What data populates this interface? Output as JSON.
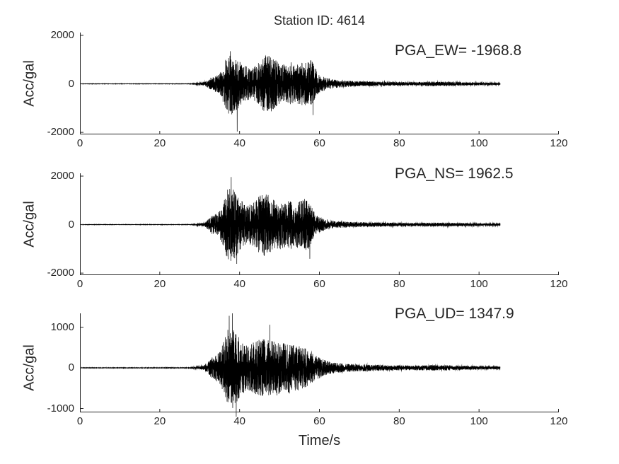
{
  "title": "Station ID: 4614",
  "xlabel": "Time/s",
  "style": {
    "background": "#ffffff",
    "axis_color": "#262626",
    "text_color": "#262626",
    "trace_color": "#000000"
  },
  "chart_data": [
    {
      "type": "line",
      "channel": "EW",
      "annotation": "PGA_EW= -1968.8",
      "pga": -1968.8,
      "ylabel": "Acc/gal",
      "xlim": [
        0,
        120
      ],
      "ylim": [
        -2085,
        2115
      ],
      "xticks": [
        0,
        20,
        40,
        60,
        80,
        100,
        120
      ],
      "yticks": [
        -2000,
        0,
        2000
      ],
      "legend": "none",
      "grid": false,
      "signal": {
        "t_end": 105.3,
        "dt": 0.02,
        "seed": 11,
        "envelope": [
          [
            0,
            6
          ],
          [
            27,
            7
          ],
          [
            29,
            15
          ],
          [
            31,
            60
          ],
          [
            32,
            150
          ],
          [
            33,
            280
          ],
          [
            34,
            330
          ],
          [
            35,
            420
          ],
          [
            36,
            800
          ],
          [
            37,
            1200
          ],
          [
            38,
            1300
          ],
          [
            39,
            1150
          ],
          [
            40,
            950
          ],
          [
            41,
            800
          ],
          [
            42,
            680
          ],
          [
            43,
            650
          ],
          [
            44,
            750
          ],
          [
            45,
            900
          ],
          [
            46,
            1150
          ],
          [
            47,
            1200
          ],
          [
            48,
            1150
          ],
          [
            49,
            1000
          ],
          [
            50,
            850
          ],
          [
            51,
            800
          ],
          [
            52,
            850
          ],
          [
            53,
            900
          ],
          [
            54,
            800
          ],
          [
            55,
            850
          ],
          [
            56,
            900
          ],
          [
            57,
            950
          ],
          [
            58,
            1000
          ],
          [
            58.8,
            700
          ],
          [
            60,
            380
          ],
          [
            61,
            300
          ],
          [
            62,
            250
          ],
          [
            63,
            200
          ],
          [
            65,
            150
          ],
          [
            68,
            125
          ],
          [
            71,
            105
          ],
          [
            75,
            95
          ],
          [
            79,
            80
          ],
          [
            83,
            70
          ],
          [
            86,
            85
          ],
          [
            88,
            105
          ],
          [
            90,
            85
          ],
          [
            92,
            95
          ],
          [
            94,
            80
          ],
          [
            96,
            65
          ],
          [
            99,
            55
          ],
          [
            102,
            50
          ],
          [
            105.3,
            40
          ]
        ],
        "spikes": [
          {
            "t": 39.4,
            "v": -1968.8
          },
          {
            "t": 37.7,
            "v": 1345
          },
          {
            "t": 58.4,
            "v": -1290
          }
        ]
      }
    },
    {
      "type": "line",
      "channel": "NS",
      "annotation": "PGA_NS= 1962.5",
      "pga": 1962.5,
      "ylabel": "Acc/gal",
      "xlim": [
        0,
        120
      ],
      "ylim": [
        -2085,
        2115
      ],
      "xticks": [
        0,
        20,
        40,
        60,
        80,
        100,
        120
      ],
      "yticks": [
        -2000,
        0,
        2000
      ],
      "legend": "none",
      "grid": false,
      "signal": {
        "t_end": 105.3,
        "dt": 0.02,
        "seed": 22,
        "envelope": [
          [
            0,
            6
          ],
          [
            27,
            7
          ],
          [
            29,
            15
          ],
          [
            31,
            80
          ],
          [
            32,
            200
          ],
          [
            33,
            380
          ],
          [
            34,
            430
          ],
          [
            35,
            550
          ],
          [
            36,
            900
          ],
          [
            37,
            1500
          ],
          [
            38,
            1550
          ],
          [
            39,
            1350
          ],
          [
            40,
            1100
          ],
          [
            41,
            900
          ],
          [
            42,
            800
          ],
          [
            43,
            850
          ],
          [
            44,
            1000
          ],
          [
            45,
            1200
          ],
          [
            46,
            1300
          ],
          [
            47,
            1250
          ],
          [
            48,
            1100
          ],
          [
            49,
            1000
          ],
          [
            50,
            1050
          ],
          [
            51,
            1000
          ],
          [
            52,
            950
          ],
          [
            53,
            1000
          ],
          [
            54,
            950
          ],
          [
            55,
            1000
          ],
          [
            56,
            1050
          ],
          [
            57,
            1100
          ],
          [
            58,
            800
          ],
          [
            59,
            400
          ],
          [
            60,
            320
          ],
          [
            61,
            260
          ],
          [
            62,
            210
          ],
          [
            63,
            170
          ],
          [
            65,
            135
          ],
          [
            68,
            115
          ],
          [
            71,
            100
          ],
          [
            75,
            90
          ],
          [
            79,
            75
          ],
          [
            83,
            65
          ],
          [
            86,
            75
          ],
          [
            88,
            90
          ],
          [
            90,
            75
          ],
          [
            92,
            85
          ],
          [
            94,
            70
          ],
          [
            96,
            60
          ],
          [
            99,
            50
          ],
          [
            102,
            45
          ],
          [
            105.3,
            38
          ]
        ],
        "spikes": [
          {
            "t": 37.9,
            "v": 1962.5
          },
          {
            "t": 39.3,
            "v": -1620
          },
          {
            "t": 57.6,
            "v": -1410
          }
        ]
      }
    },
    {
      "type": "line",
      "channel": "UD",
      "annotation": "PGA_UD= 1347.9",
      "pga": 1347.9,
      "ylabel": "Acc/gal",
      "xlim": [
        0,
        120
      ],
      "ylim": [
        -1095,
        1340
      ],
      "xticks": [
        0,
        20,
        40,
        60,
        80,
        100,
        120
      ],
      "yticks": [
        -1000,
        0,
        1000
      ],
      "legend": "none",
      "grid": false,
      "signal": {
        "t_end": 105.3,
        "dt": 0.02,
        "seed": 33,
        "envelope": [
          [
            0,
            5
          ],
          [
            27,
            6
          ],
          [
            29,
            12
          ],
          [
            31,
            50
          ],
          [
            32,
            130
          ],
          [
            33,
            260
          ],
          [
            34,
            310
          ],
          [
            35,
            400
          ],
          [
            36,
            650
          ],
          [
            37,
            950
          ],
          [
            38,
            1050
          ],
          [
            39,
            900
          ],
          [
            40,
            750
          ],
          [
            41,
            620
          ],
          [
            42,
            560
          ],
          [
            43,
            600
          ],
          [
            44,
            650
          ],
          [
            45,
            700
          ],
          [
            46,
            720
          ],
          [
            47,
            700
          ],
          [
            48,
            660
          ],
          [
            49,
            700
          ],
          [
            50,
            660
          ],
          [
            51,
            620
          ],
          [
            52,
            650
          ],
          [
            53,
            640
          ],
          [
            54,
            580
          ],
          [
            55,
            540
          ],
          [
            56,
            500
          ],
          [
            57,
            450
          ],
          [
            58,
            380
          ],
          [
            59,
            300
          ],
          [
            60,
            260
          ],
          [
            61,
            210
          ],
          [
            62,
            175
          ],
          [
            63,
            145
          ],
          [
            65,
            115
          ],
          [
            68,
            95
          ],
          [
            71,
            85
          ],
          [
            75,
            75
          ],
          [
            79,
            62
          ],
          [
            83,
            55
          ],
          [
            86,
            62
          ],
          [
            88,
            70
          ],
          [
            90,
            62
          ],
          [
            92,
            66
          ],
          [
            94,
            58
          ],
          [
            96,
            50
          ],
          [
            99,
            45
          ],
          [
            102,
            40
          ],
          [
            105.3,
            32
          ]
        ],
        "spikes": [
          {
            "t": 38.2,
            "v": 1347.9
          },
          {
            "t": 39.15,
            "v": -1205
          },
          {
            "t": 37.4,
            "v": 1280
          },
          {
            "t": 47.6,
            "v": 1060
          }
        ]
      }
    }
  ]
}
